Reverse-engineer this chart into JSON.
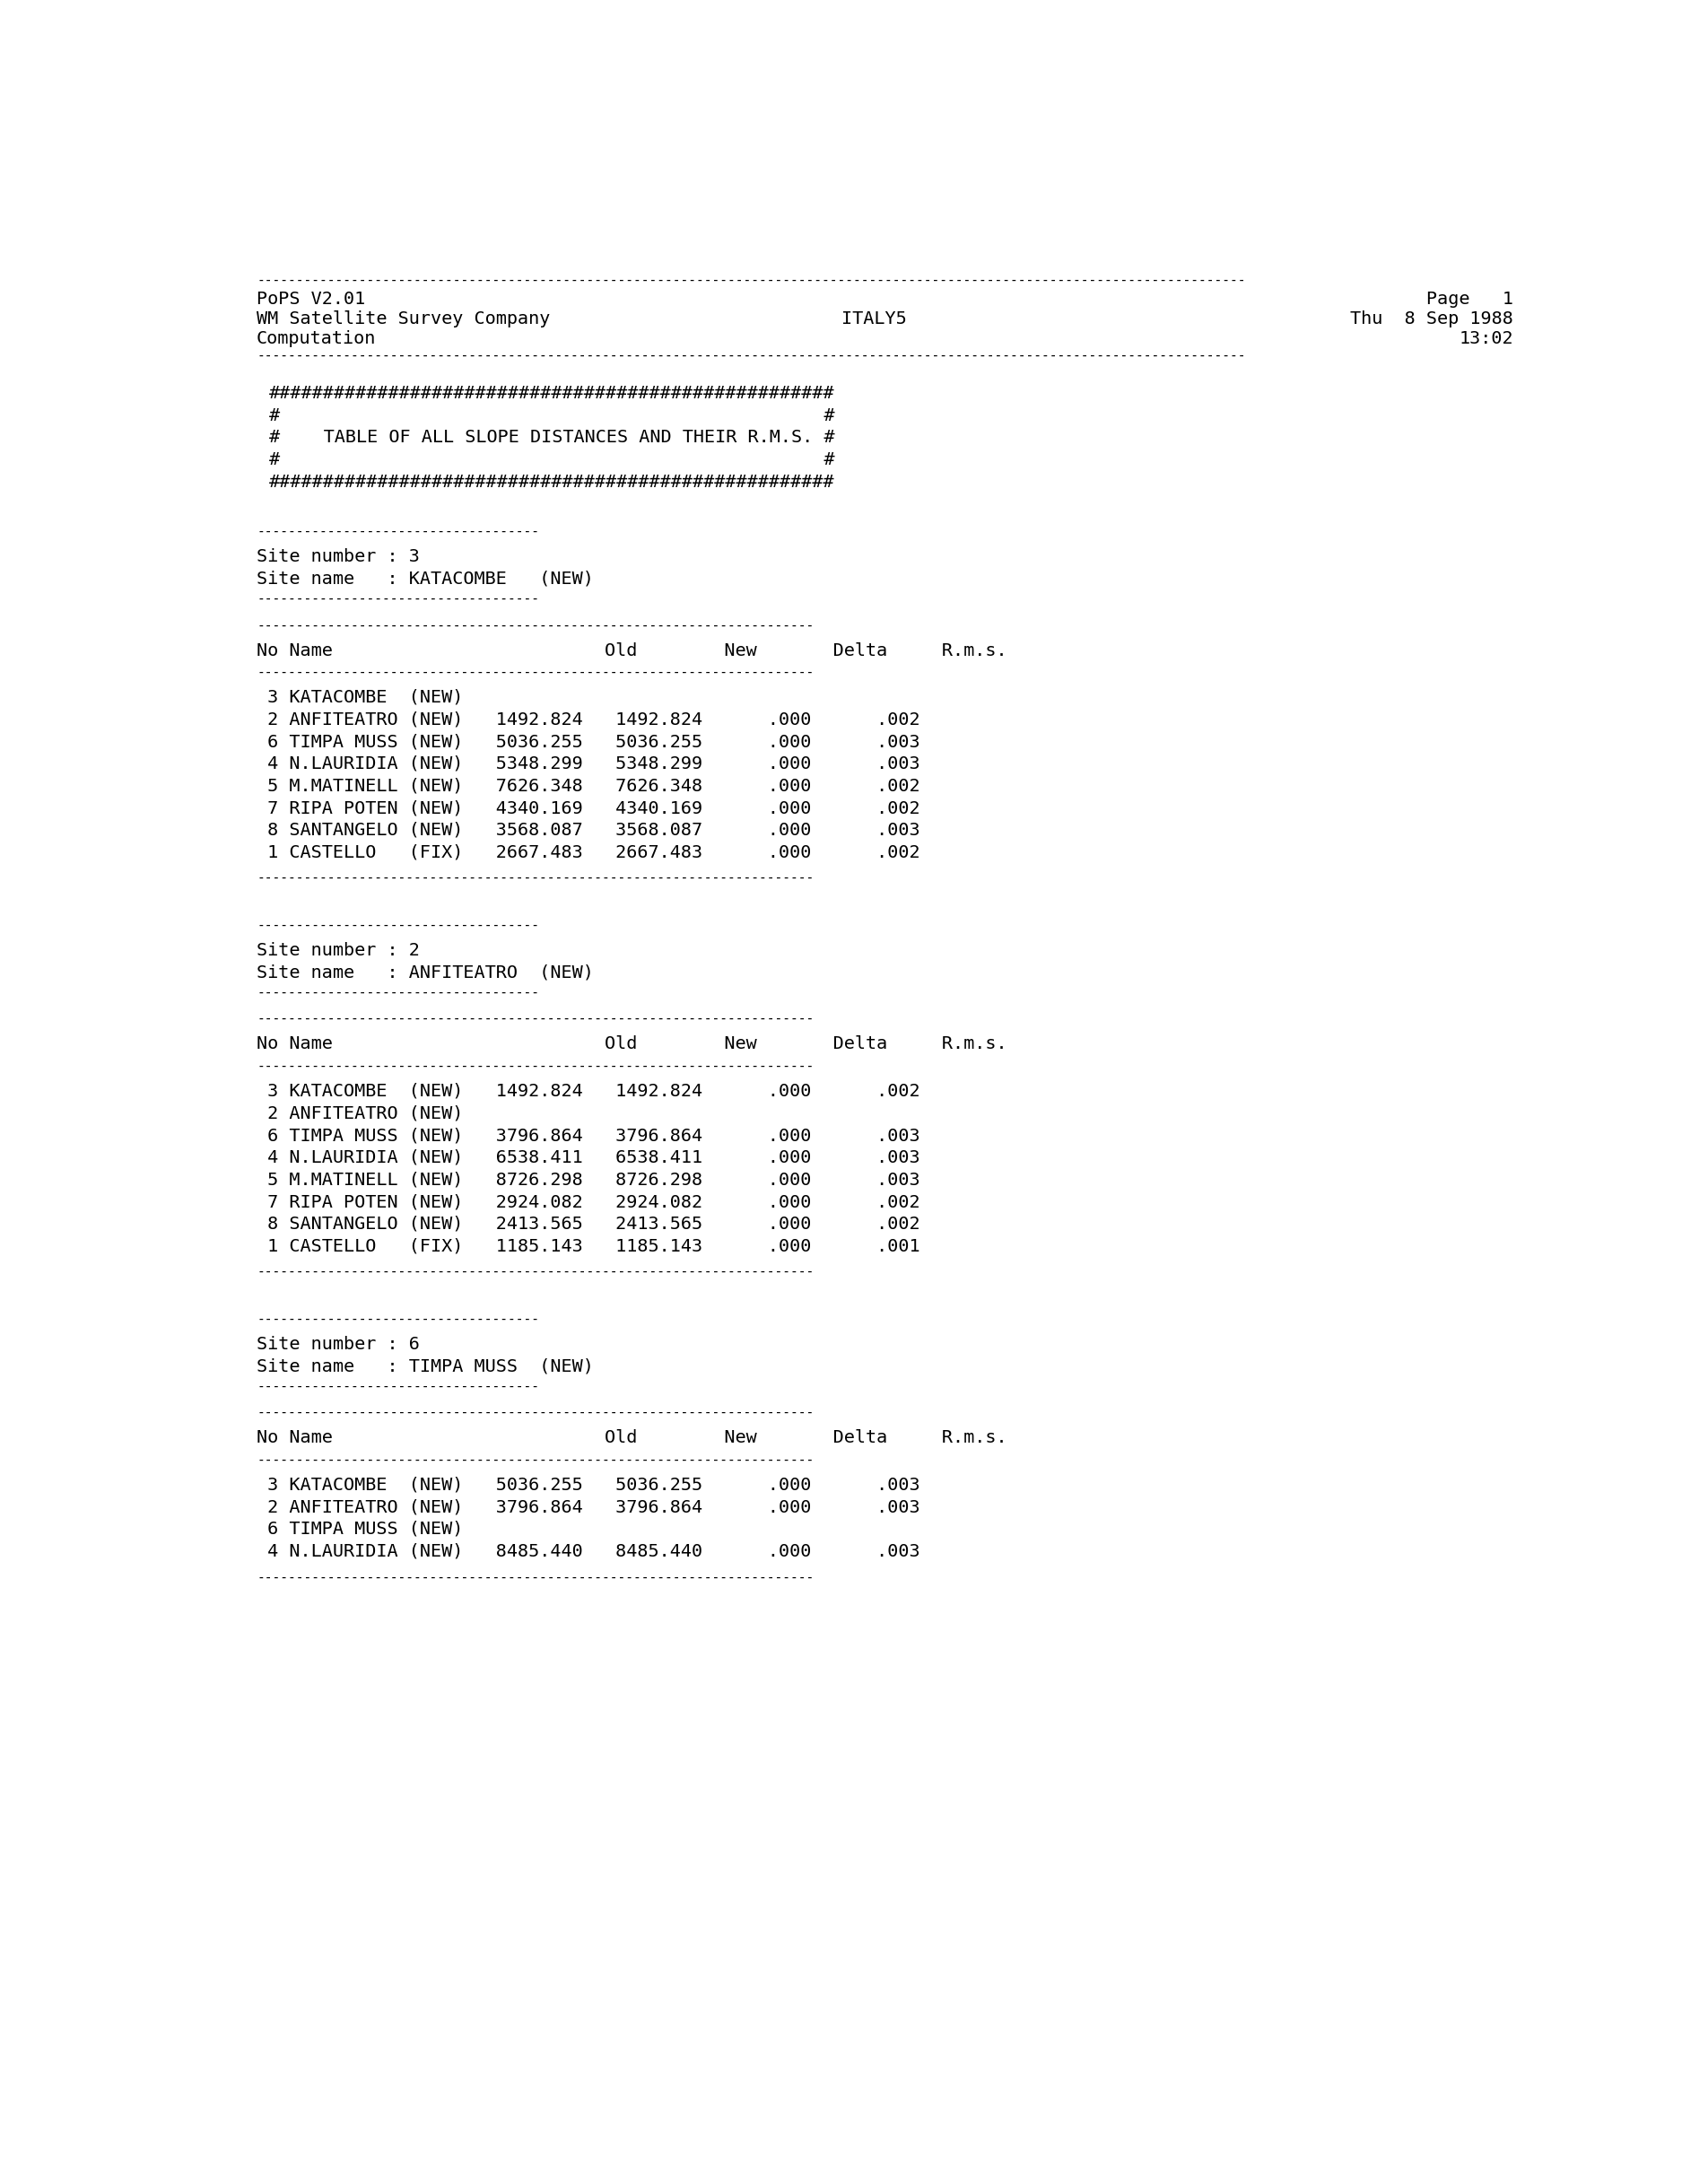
{
  "bg_color": "#ffffff",
  "text_color": "#000000",
  "font_family": "DejaVu Sans Mono",
  "font_size": 14.5,
  "sections": [
    {
      "site_number": "3",
      "site_name": "KATACOMBE   (NEW)",
      "rows": [
        " 3 KATACOMBE  (NEW)",
        " 2 ANFITEATRO (NEW)   1492.824   1492.824      .000      .002",
        " 6 TIMPA MUSS (NEW)   5036.255   5036.255      .000      .003",
        " 4 N.LAURIDIA (NEW)   5348.299   5348.299      .000      .003",
        " 5 M.MATINELL (NEW)   7626.348   7626.348      .000      .002",
        " 7 RIPA POTEN (NEW)   4340.169   4340.169      .000      .002",
        " 8 SANTANGELO (NEW)   3568.087   3568.087      .000      .003",
        " 1 CASTELLO   (FIX)   2667.483   2667.483      .000      .002"
      ]
    },
    {
      "site_number": "2",
      "site_name": "ANFITEATRO  (NEW)",
      "rows": [
        " 3 KATACOMBE  (NEW)   1492.824   1492.824      .000      .002",
        " 2 ANFITEATRO (NEW)",
        " 6 TIMPA MUSS (NEW)   3796.864   3796.864      .000      .003",
        " 4 N.LAURIDIA (NEW)   6538.411   6538.411      .000      .003",
        " 5 M.MATINELL (NEW)   8726.298   8726.298      .000      .003",
        " 7 RIPA POTEN (NEW)   2924.082   2924.082      .000      .002",
        " 8 SANTANGELO (NEW)   2413.565   2413.565      .000      .002",
        " 1 CASTELLO   (FIX)   1185.143   1185.143      .000      .001"
      ]
    },
    {
      "site_number": "6",
      "site_name": "TIMPA MUSS  (NEW)",
      "rows": [
        " 3 KATACOMBE  (NEW)   5036.255   5036.255      .000      .003",
        " 2 ANFITEATRO (NEW)   3796.864   3796.864      .000      .003",
        " 6 TIMPA MUSS (NEW)",
        " 4 N.LAURIDIA (NEW)   8485.440   8485.440      .000      .003"
      ]
    }
  ],
  "col_header": "No Name                         Old        New       Delta     R.m.s.",
  "short_sep": "------------------------------------",
  "long_sep": "-----------------------------------------------------------------------",
  "wide_sep": "--------------------------------------------------------------------------------",
  "hash_block": [
    "####################################################",
    "#                                                  #",
    "#    TABLE OF ALL SLOPE DISTANCES AND THEIR R.M.S. #",
    "#                                                  #",
    "####################################################"
  ],
  "header_line1_left": "PoPS V2.01",
  "header_line1_right": "Page   1",
  "header_line2_left": "WM Satellite Survey Company",
  "header_line2_center": "ITALY5",
  "header_line2_right": "Thu  8 Sep 1988",
  "header_line3_left": "Computation",
  "header_line3_right": "13:02"
}
